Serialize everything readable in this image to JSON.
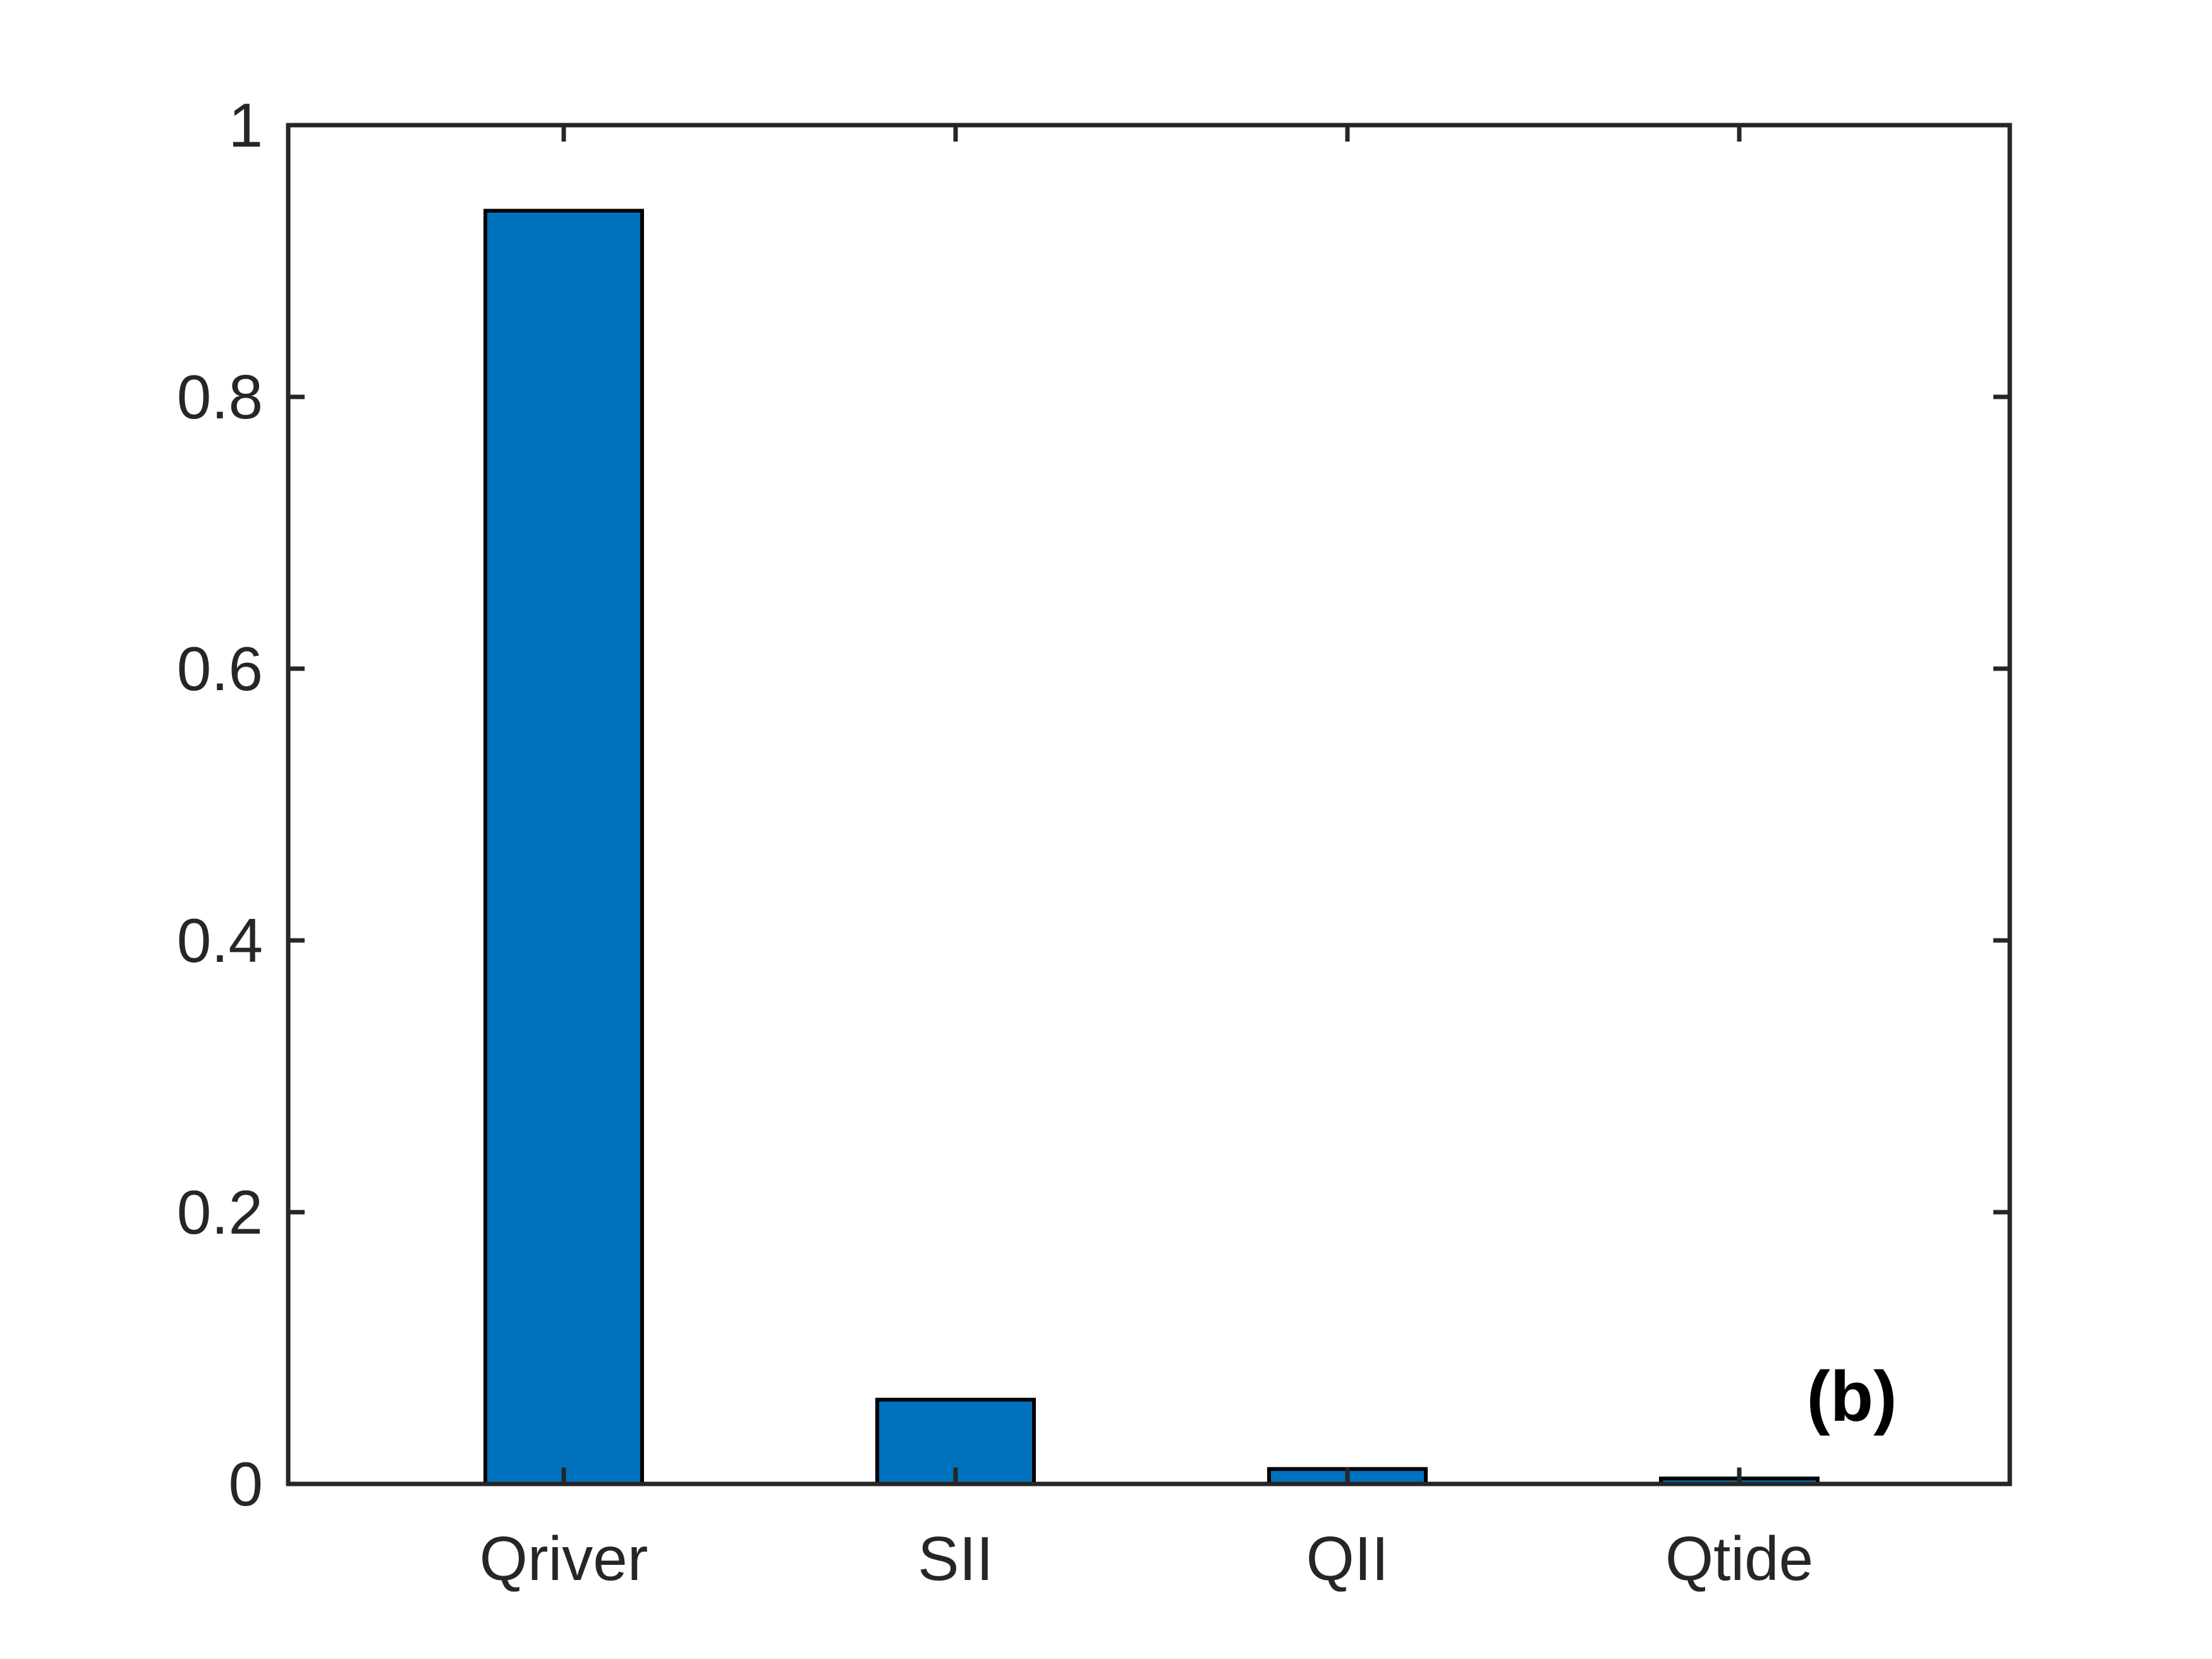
{
  "chart_data": {
    "type": "bar",
    "categories": [
      "Qriver",
      "SII",
      "QII",
      "Qtide"
    ],
    "values": [
      0.937,
      0.062,
      0.011,
      0.004
    ],
    "title": "",
    "xlabel": "",
    "ylabel": "",
    "ylim": [
      0,
      1
    ],
    "yticks": [
      0,
      0.2,
      0.4,
      0.6,
      0.8,
      1
    ],
    "ytick_labels": [
      "0",
      "0.2",
      "0.4",
      "0.6",
      "0.8",
      "1"
    ],
    "grid": false,
    "legend": "none",
    "annotations": [
      {
        "text": "(b)",
        "placement": "bottom-right"
      }
    ],
    "colors": {
      "bar_fill": "#0072BD",
      "bar_edge": "#000000",
      "axes": "#262626",
      "text": "#262626"
    }
  }
}
